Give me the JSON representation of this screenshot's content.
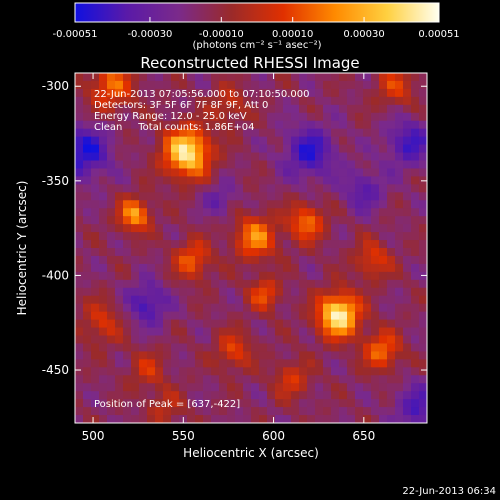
{
  "chart_data": {
    "type": "heatmap",
    "title": "Reconstructed RHESSI Image",
    "xlabel": "Heliocentric X (arcsec)",
    "ylabel": "Heliocentric Y (arcsec)",
    "xlim": [
      490,
      685
    ],
    "ylim": [
      -478,
      -293
    ],
    "xticks": [
      500,
      550,
      600,
      650
    ],
    "yticks": [
      -300,
      -350,
      -400,
      -450
    ],
    "colorbar": {
      "min": -0.00051,
      "max": 0.00051,
      "ticks": [
        "-0.00051",
        "-0.00030",
        "-0.00010",
        "0.00010",
        "0.00030",
        "0.00051"
      ],
      "tick_values": [
        -0.00051,
        -0.0003,
        -0.0001,
        0.0001,
        0.0003,
        0.00051
      ],
      "unit_label": "(photons cm⁻² s⁻¹ asec⁻²)",
      "colors": [
        "#1010e0",
        "#5a1aa8",
        "#7b2a8a",
        "#9a2a2a",
        "#e03000",
        "#ff8a00",
        "#ffd040",
        "#fffff0"
      ]
    },
    "peak": {
      "x": 637,
      "y": -422
    },
    "annotations": [
      "22-Jun-2013 07:05:56.000 to 07:10:50.000",
      "Detectors: 3F 5F 6F 7F 8F 9F, Att 0",
      "Energy Range: 12.0 - 25.0 keV",
      "Clean     Total counts: 1.86E+04",
      "Position of Peak = [637,-422]"
    ],
    "sources": [
      {
        "x": 552,
        "y": -335,
        "amp": 1.0,
        "sigma": 9
      },
      {
        "x": 636,
        "y": -421,
        "amp": 1.05,
        "sigma": 8
      },
      {
        "x": 523,
        "y": -368,
        "amp": 0.7,
        "sigma": 6
      },
      {
        "x": 618,
        "y": -372,
        "amp": 0.55,
        "sigma": 7
      },
      {
        "x": 590,
        "y": -380,
        "amp": 0.62,
        "sigma": 8
      },
      {
        "x": 555,
        "y": -392,
        "amp": 0.5,
        "sigma": 7
      },
      {
        "x": 595,
        "y": -410,
        "amp": 0.45,
        "sigma": 6
      },
      {
        "x": 655,
        "y": -392,
        "amp": 0.4,
        "sigma": 7
      },
      {
        "x": 660,
        "y": -440,
        "amp": 0.55,
        "sigma": 7
      },
      {
        "x": 510,
        "y": -300,
        "amp": 0.5,
        "sigma": 9
      },
      {
        "x": 505,
        "y": -425,
        "amp": 0.35,
        "sigma": 8
      },
      {
        "x": 530,
        "y": -450,
        "amp": 0.3,
        "sigma": 7
      },
      {
        "x": 578,
        "y": -440,
        "amp": 0.4,
        "sigma": 7
      },
      {
        "x": 610,
        "y": -455,
        "amp": 0.35,
        "sigma": 7
      },
      {
        "x": 668,
        "y": -300,
        "amp": 0.35,
        "sigma": 8
      },
      {
        "x": 575,
        "y": -310,
        "amp": 0.3,
        "sigma": 7
      },
      {
        "x": 540,
        "y": -470,
        "amp": 0.25,
        "sigma": 7
      }
    ],
    "negatives": [
      {
        "x": 495,
        "y": -335,
        "amp": -0.55,
        "sigma": 10
      },
      {
        "x": 530,
        "y": -415,
        "amp": -0.45,
        "sigma": 8
      },
      {
        "x": 620,
        "y": -335,
        "amp": -0.5,
        "sigma": 10
      },
      {
        "x": 675,
        "y": -330,
        "amp": -0.45,
        "sigma": 9
      },
      {
        "x": 680,
        "y": -470,
        "amp": -0.4,
        "sigma": 9
      },
      {
        "x": 570,
        "y": -360,
        "amp": -0.3,
        "sigma": 6
      },
      {
        "x": 650,
        "y": -355,
        "amp": -0.35,
        "sigma": 8
      }
    ]
  },
  "timestamp": "22-Jun-2013 06:34"
}
